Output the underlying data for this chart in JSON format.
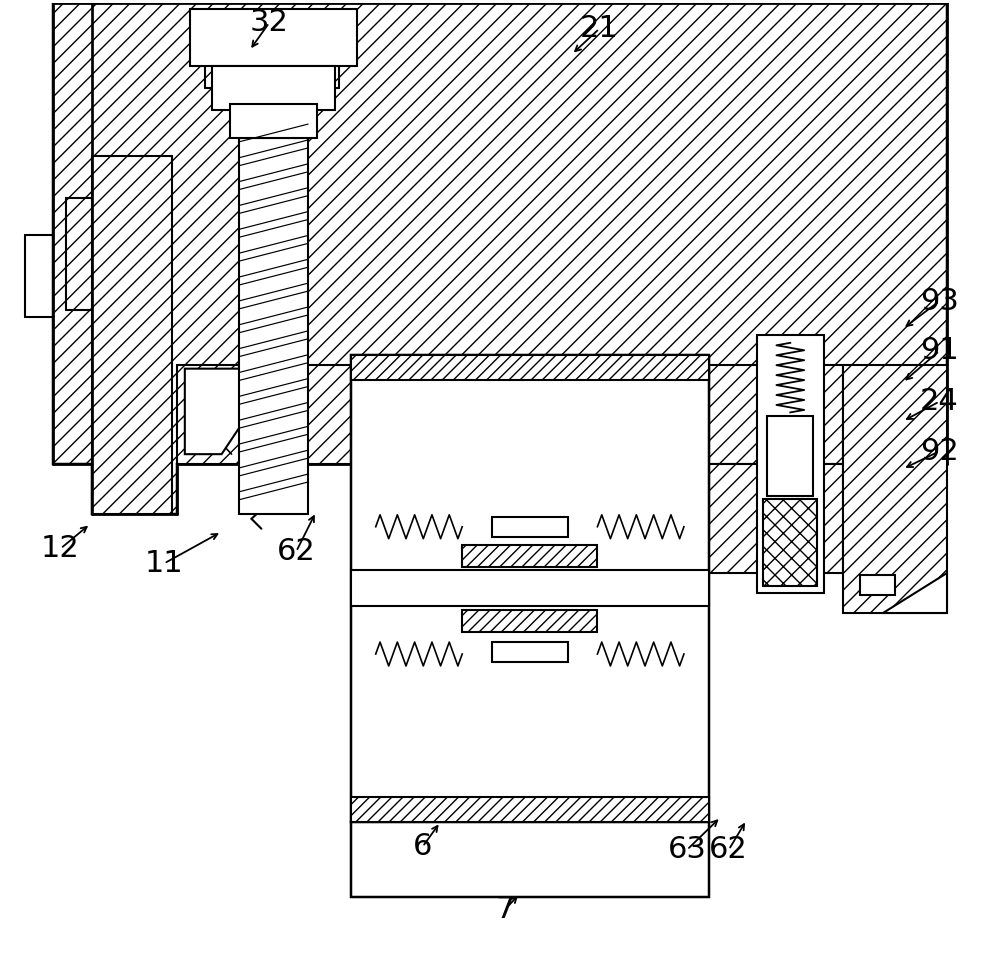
{
  "bg": "#ffffff",
  "lc": "#000000",
  "lw": 1.5,
  "figsize": [
    10.0,
    9.64
  ],
  "dpi": 100,
  "font_size": 22
}
